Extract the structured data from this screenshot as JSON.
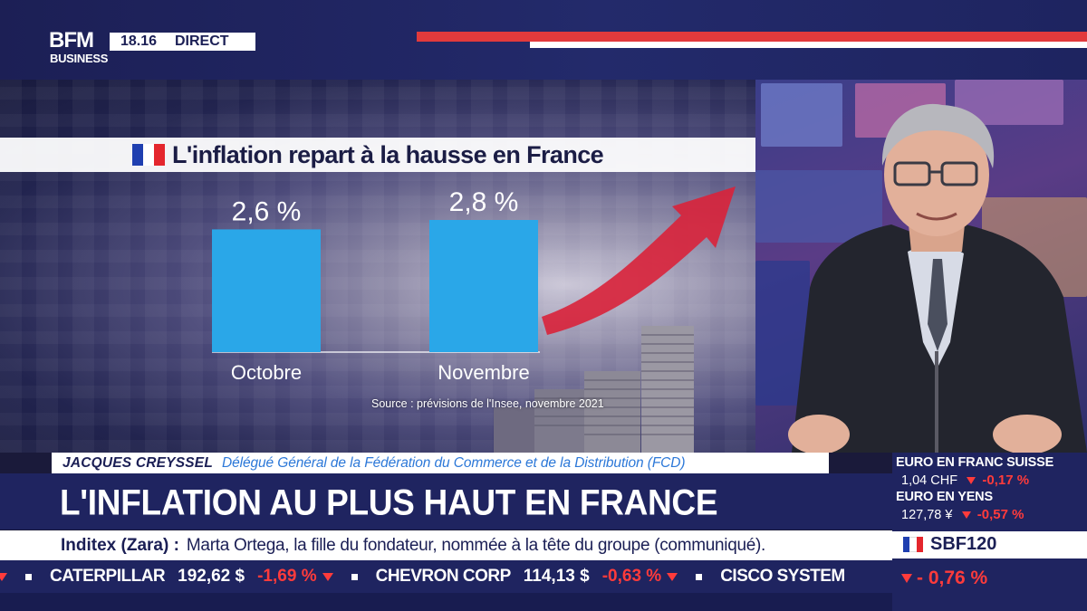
{
  "header": {
    "logo_top": "BFM",
    "logo_bottom": "BUSINESS",
    "time": "18.16",
    "live_label": "DIRECT"
  },
  "graphic": {
    "source": "Source : prévisions de l'Insee, novembre 2021"
  },
  "chart_data": {
    "type": "bar",
    "title": "L'inflation repart à la hausse en France",
    "categories": [
      "Octobre",
      "Novembre"
    ],
    "values": [
      2.6,
      2.8
    ],
    "value_labels": [
      "2,6 %",
      "2,8 %"
    ],
    "bar_color": "#2aa7e8",
    "ylim": [
      0,
      2.8
    ]
  },
  "lower_third": {
    "guest_name": "JACQUES CREYSSEL",
    "guest_role": "Délégué Général de la Fédération du Commerce et de la Distribution (FCD)",
    "headline": "L'INFLATION AU PLUS HAUT EN FRANCE",
    "news_source": "Inditex (Zara) :",
    "news_text": "Marta Ortega, la fille du fondateur, nommée à la tête du groupe (communiqué)."
  },
  "ticker": [
    {
      "name": "CATERPILLAR",
      "price": "192,62 $",
      "change": "-1,69 %"
    },
    {
      "name": "CHEVRON CORP",
      "price": "114,13 $",
      "change": "-0,63 %"
    },
    {
      "name": "CISCO SYSTEM",
      "price": "",
      "change": ""
    }
  ],
  "markets": {
    "chf_title": "EURO EN FRANC SUISSE",
    "chf_value": "1,04 CHF",
    "chf_change": "-0,17 %",
    "jpy_title": "EURO EN YENS",
    "jpy_value": "127,78 ¥",
    "jpy_change": "-0,57 %",
    "index_name": "SBF120",
    "index_change": "- 0,76 %"
  },
  "colors": {
    "brand_navy": "#1f2460",
    "accent_red": "#e23a3c",
    "bar_blue": "#2aa7e8",
    "negative": "#ff3b3b"
  }
}
